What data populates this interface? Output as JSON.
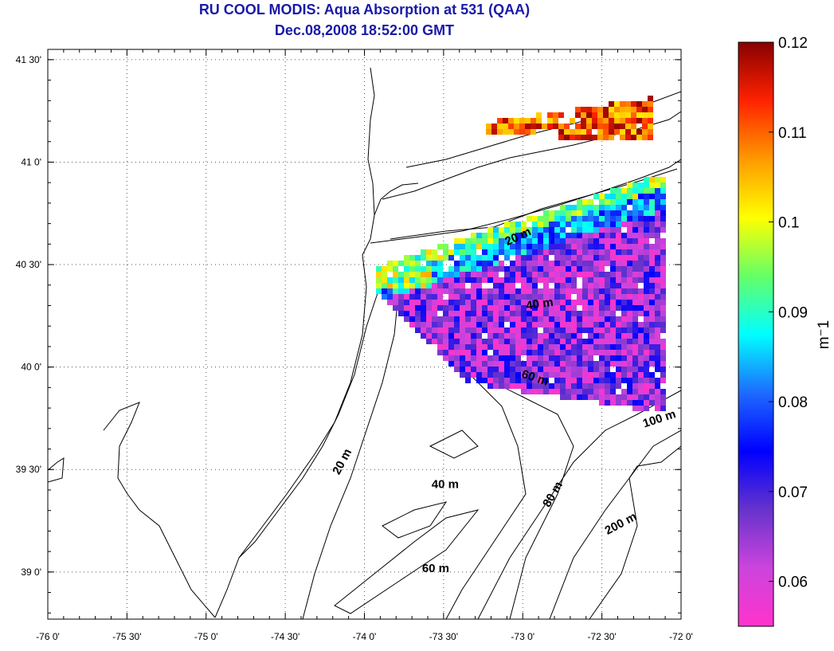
{
  "title": "RU COOL MODIS: Aqua Absorption at 531 (QAA)",
  "subtitle": "Dec.08,2008 18:52:00 GMT",
  "map": {
    "lon_range": [
      -76.0,
      -72.0
    ],
    "lat_range": [
      38.77,
      41.55
    ],
    "grid": true,
    "x_ticks": [
      {
        "value": -76.0,
        "label": "-76 0'"
      },
      {
        "value": -75.5,
        "label": "-75 30'"
      },
      {
        "value": -75.0,
        "label": "-75 0'"
      },
      {
        "value": -74.5,
        "label": "-74 30'"
      },
      {
        "value": -74.0,
        "label": "-74 0'"
      },
      {
        "value": -73.5,
        "label": "-73 30'"
      },
      {
        "value": -73.0,
        "label": "-73 0'"
      },
      {
        "value": -72.5,
        "label": "-72 30'"
      },
      {
        "value": -72.0,
        "label": "-72 0'"
      }
    ],
    "y_ticks": [
      {
        "value": 41.5,
        "label": "41 30'"
      },
      {
        "value": 41.0,
        "label": "41 0'"
      },
      {
        "value": 40.5,
        "label": "40 30'"
      },
      {
        "value": 40.0,
        "label": "40 0'"
      },
      {
        "value": 39.5,
        "label": "39 30'"
      },
      {
        "value": 39.0,
        "label": "39 0'"
      }
    ],
    "depth_labels": [
      {
        "text": "20 m",
        "lon": -73.02,
        "lat": 40.62,
        "rot": -25
      },
      {
        "text": "40 m",
        "lon": -72.89,
        "lat": 40.29,
        "rot": -8
      },
      {
        "text": "60 m",
        "lon": -72.93,
        "lat": 39.93,
        "rot": 18
      },
      {
        "text": "100 m",
        "lon": -72.13,
        "lat": 39.73,
        "rot": -18
      },
      {
        "text": "20 m",
        "lon": -74.12,
        "lat": 39.53,
        "rot": -62
      },
      {
        "text": "40 m",
        "lon": -73.49,
        "lat": 39.41,
        "rot": 0
      },
      {
        "text": "80 m",
        "lon": -72.79,
        "lat": 39.37,
        "rot": -60
      },
      {
        "text": "200 m",
        "lon": -72.37,
        "lat": 39.22,
        "rot": -28
      },
      {
        "text": "60 m",
        "lon": -73.55,
        "lat": 39.0,
        "rot": 0
      }
    ]
  },
  "colorbar": {
    "min": 0.055,
    "max": 0.12,
    "ticks": [
      {
        "value": 0.12,
        "label": "0.12"
      },
      {
        "value": 0.11,
        "label": "0.11"
      },
      {
        "value": 0.1,
        "label": "0.1"
      },
      {
        "value": 0.09,
        "label": "0.09"
      },
      {
        "value": 0.08,
        "label": "0.08"
      },
      {
        "value": 0.07,
        "label": "0.07"
      },
      {
        "value": 0.06,
        "label": "0.06"
      }
    ],
    "unit_label": "m⁻1",
    "colors": [
      "#ff33cc",
      "#cc44dd",
      "#6633cc",
      "#0000ff",
      "#1e6bff",
      "#00ffff",
      "#66ff66",
      "#ffff00",
      "#ff9900",
      "#ff2200",
      "#880000"
    ]
  }
}
